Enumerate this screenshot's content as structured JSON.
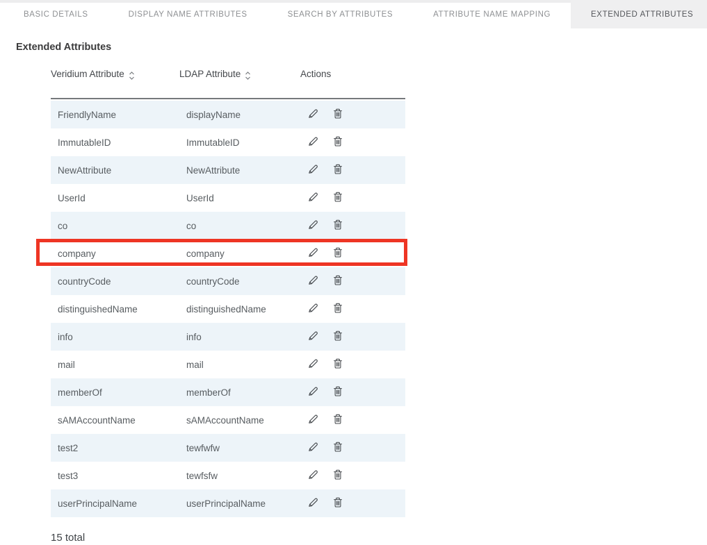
{
  "tabs": {
    "items": [
      {
        "label": "BASIC DETAILS",
        "selected": false
      },
      {
        "label": "DISPLAY NAME ATTRIBUTES",
        "selected": false
      },
      {
        "label": "SEARCH BY ATTRIBUTES",
        "selected": false
      },
      {
        "label": "ATTRIBUTE NAME MAPPING",
        "selected": false
      },
      {
        "label": "EXTENDED ATTRIBUTES",
        "selected": true
      }
    ]
  },
  "section": {
    "title": "Extended Attributes"
  },
  "table": {
    "columns": [
      {
        "label": "Veridium Attribute",
        "sortable": true
      },
      {
        "label": "LDAP Attribute",
        "sortable": true
      },
      {
        "label": "Actions",
        "sortable": false
      }
    ],
    "action_icons": [
      {
        "name": "pencil-icon",
        "meaning": "edit"
      },
      {
        "name": "trash-icon",
        "meaning": "delete"
      }
    ],
    "rows": [
      {
        "veridium": "FriendlyName",
        "ldap": "displayName",
        "highlighted": false
      },
      {
        "veridium": "ImmutableID",
        "ldap": "ImmutableID",
        "highlighted": false
      },
      {
        "veridium": "NewAttribute",
        "ldap": "NewAttribute",
        "highlighted": false
      },
      {
        "veridium": "UserId",
        "ldap": "UserId",
        "highlighted": false
      },
      {
        "veridium": "co",
        "ldap": "co",
        "highlighted": false
      },
      {
        "veridium": "company",
        "ldap": "company",
        "highlighted": true
      },
      {
        "veridium": "countryCode",
        "ldap": "countryCode",
        "highlighted": false
      },
      {
        "veridium": "distinguishedName",
        "ldap": "distinguishedName",
        "highlighted": false
      },
      {
        "veridium": "info",
        "ldap": "info",
        "highlighted": false
      },
      {
        "veridium": "mail",
        "ldap": "mail",
        "highlighted": false
      },
      {
        "veridium": "memberOf",
        "ldap": "memberOf",
        "highlighted": false
      },
      {
        "veridium": "sAMAccountName",
        "ldap": "sAMAccountName",
        "highlighted": false
      },
      {
        "veridium": "test2",
        "ldap": "tewfwfw",
        "highlighted": false
      },
      {
        "veridium": "test3",
        "ldap": "tewfsfw",
        "highlighted": false
      },
      {
        "veridium": "userPrincipalName",
        "ldap": "userPrincipalName",
        "highlighted": false
      }
    ]
  },
  "footer": {
    "total_label": "15 total"
  },
  "colors": {
    "highlight_border": "#ee3524",
    "row_alt_background": "#edf4f9",
    "selected_tab_background": "#efeff0"
  }
}
